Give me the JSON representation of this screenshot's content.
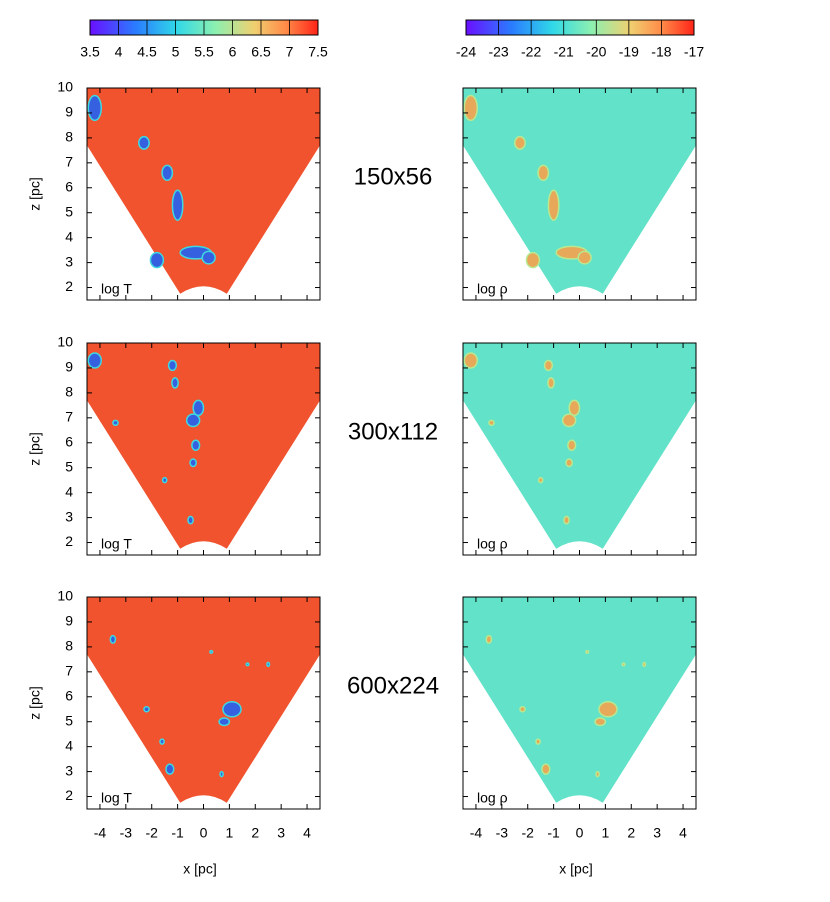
{
  "colorbars": [
    {
      "lim": [
        3.5,
        7.5
      ],
      "ticks": [
        3.5,
        4,
        4.5,
        5,
        5.5,
        6,
        6.5,
        7,
        7.5
      ]
    },
    {
      "lim": [
        -24,
        -17
      ],
      "ticks": [
        -24,
        -23,
        -22,
        -21,
        -20,
        -19,
        -18,
        -17
      ]
    }
  ],
  "panels": {
    "xlim": [
      -4.5,
      4.5
    ],
    "ylim": [
      1.5,
      10
    ],
    "xticks": [
      -4,
      -3,
      -2,
      -1,
      0,
      1,
      2,
      3,
      4
    ],
    "yticks": [
      2,
      3,
      4,
      5,
      6,
      7,
      8,
      9,
      10
    ],
    "xlabel": "x [pc]",
    "ylabel": "z [pc]"
  },
  "columns": [
    "log T",
    "log ρ"
  ],
  "rows": [
    "150x56",
    "300x112",
    "600x224"
  ]
}
